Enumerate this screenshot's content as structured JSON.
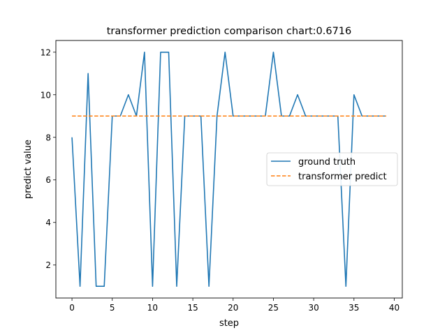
{
  "chart_data": {
    "type": "line",
    "title": "transformer prediction comparison chart:0.6716",
    "xlabel": "step",
    "ylabel": "predict value",
    "xlim": [
      -2,
      41
    ],
    "ylim": [
      0.45,
      12.55
    ],
    "xticks": [
      0,
      5,
      10,
      15,
      20,
      25,
      30,
      35,
      40
    ],
    "yticks": [
      2,
      4,
      6,
      8,
      10,
      12
    ],
    "grid": false,
    "legend_position": "center-right",
    "series": [
      {
        "name": "ground truth",
        "color": "#1f77b4",
        "style": "solid",
        "x": [
          0,
          1,
          2,
          3,
          4,
          5,
          6,
          7,
          8,
          9,
          10,
          11,
          12,
          13,
          14,
          15,
          16,
          17,
          18,
          19,
          20,
          21,
          22,
          23,
          24,
          25,
          26,
          27,
          28,
          29,
          30,
          31,
          32,
          33,
          34,
          35,
          36,
          37,
          38,
          39
        ],
        "y": [
          8,
          1,
          11,
          1,
          1,
          9,
          9,
          10,
          9,
          12,
          1,
          12,
          12,
          1,
          9,
          9,
          9,
          1,
          9,
          12,
          9,
          9,
          9,
          9,
          9,
          12,
          9,
          9,
          10,
          9,
          9,
          9,
          9,
          9,
          1,
          10,
          9,
          9,
          9,
          9
        ]
      },
      {
        "name": "transformer predict",
        "color": "#ff7f0e",
        "style": "dashed",
        "x": [
          0,
          1,
          2,
          3,
          4,
          5,
          6,
          7,
          8,
          9,
          10,
          11,
          12,
          13,
          14,
          15,
          16,
          17,
          18,
          19,
          20,
          21,
          22,
          23,
          24,
          25,
          26,
          27,
          28,
          29,
          30,
          31,
          32,
          33,
          34,
          35,
          36,
          37,
          38,
          39
        ],
        "y": [
          9,
          9,
          9,
          9,
          9,
          9,
          9,
          9,
          9,
          9,
          9,
          9,
          9,
          9,
          9,
          9,
          9,
          9,
          9,
          9,
          9,
          9,
          9,
          9,
          9,
          9,
          9,
          9,
          9,
          9,
          9,
          9,
          9,
          9,
          9,
          9,
          9,
          9,
          9,
          9
        ]
      }
    ]
  }
}
